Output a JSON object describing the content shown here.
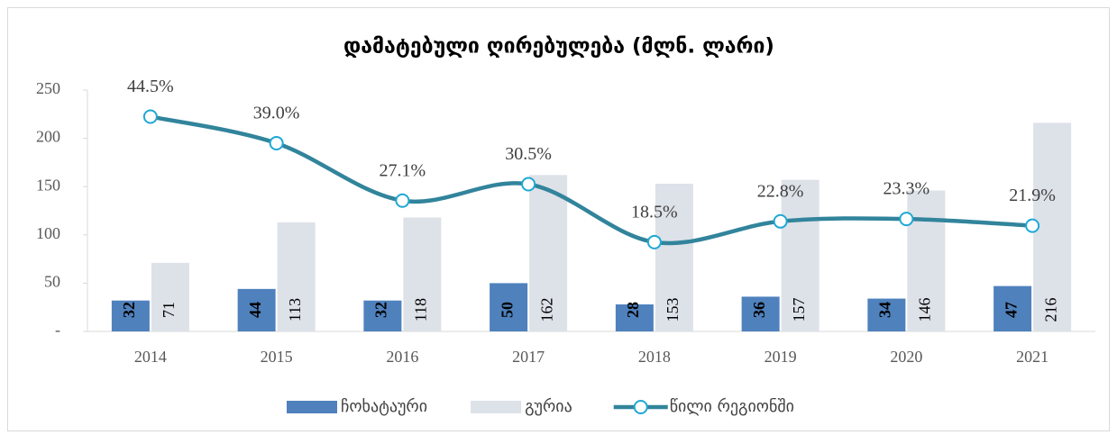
{
  "chart_data": {
    "type": "bar-line",
    "title": "დამატებული ღირებულება (მლნ. ლარი)",
    "categories": [
      "2014",
      "2015",
      "2016",
      "2017",
      "2018",
      "2019",
      "2020",
      "2021"
    ],
    "series": [
      {
        "name": "ჩოხატაური",
        "type": "bar",
        "color": "#4f81bd",
        "values": [
          32,
          44,
          32,
          50,
          28,
          36,
          34,
          47
        ]
      },
      {
        "name": "გურია",
        "type": "bar",
        "color": "#dde1e8",
        "values": [
          71,
          113,
          118,
          162,
          153,
          157,
          146,
          216
        ]
      },
      {
        "name": "წილი რეგიონში",
        "type": "line",
        "axis": "y2",
        "color": "#31849b",
        "values": [
          44.5,
          39.0,
          27.1,
          30.5,
          18.5,
          22.8,
          23.3,
          21.9
        ],
        "value_labels": [
          "44.5%",
          "39.0%",
          "27.1%",
          "30.5%",
          "18.5%",
          "22.8%",
          "23.3%",
          "21.9%"
        ]
      }
    ],
    "ylim": [
      0,
      250
    ],
    "yticks": [
      {
        "value": 0,
        "label": "-"
      },
      50,
      100,
      150,
      200,
      250
    ],
    "y2lim": [
      0,
      50
    ],
    "legend": "bottom"
  }
}
